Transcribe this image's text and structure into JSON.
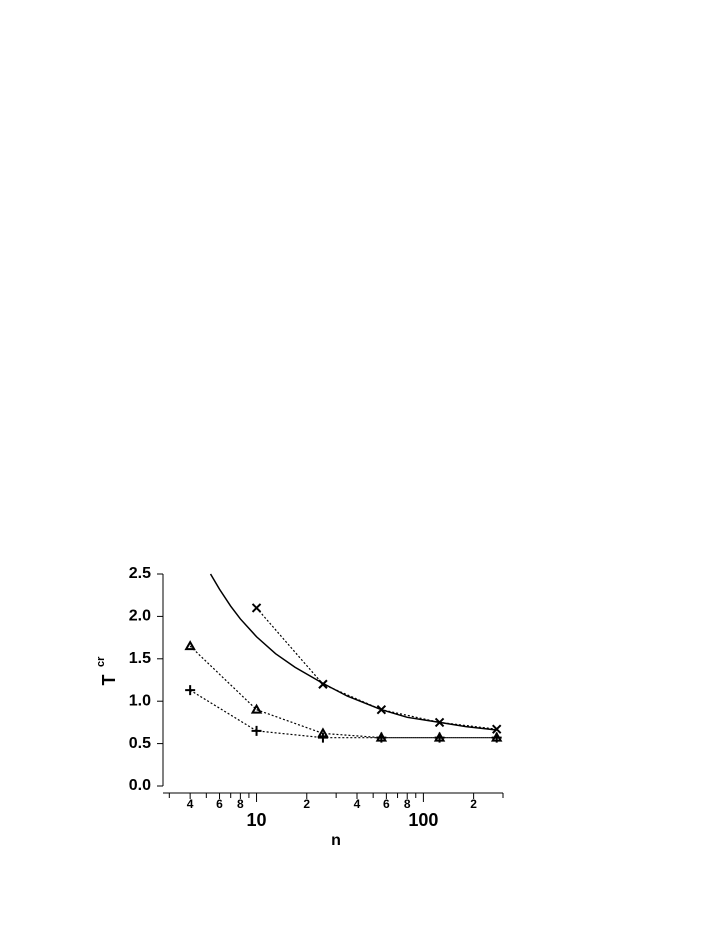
{
  "chart_data": {
    "type": "line",
    "xlabel": "n",
    "ylabel": "T",
    "ylabel_sup": "cr",
    "xscale": "log",
    "xlim": [
      2.75,
      300
    ],
    "ylim": [
      0,
      2.5
    ],
    "xticks": [
      {
        "value": 4,
        "label": "4"
      },
      {
        "value": 6,
        "label": "6"
      },
      {
        "value": 8,
        "label": "8"
      },
      10,
      {
        "value": 20,
        "label": "2"
      },
      {
        "value": 40,
        "label": "4"
      },
      {
        "value": 60,
        "label": "6"
      },
      {
        "value": 80,
        "label": "8"
      },
      100,
      {
        "value": 200,
        "label": "2"
      }
    ],
    "xminorticks": [
      3,
      5,
      7,
      9,
      30,
      50,
      70,
      90,
      300
    ],
    "yticks": [
      {
        "value": 0,
        "label": "0.0"
      },
      {
        "value": 0.5,
        "label": "0.5"
      },
      {
        "value": 1,
        "label": "1.0"
      },
      {
        "value": 1.5,
        "label": "1.5"
      },
      {
        "value": 2,
        "label": "2.0"
      },
      {
        "value": 2.5,
        "label": "2.5"
      }
    ],
    "series": [
      {
        "color": "#000000",
        "marker": "none",
        "line": "solid",
        "x": [
          5.3,
          6,
          7,
          8,
          10,
          13,
          17,
          25,
          35,
          56,
          80,
          125,
          180,
          275
        ],
        "values": [
          2.5,
          2.32,
          2.12,
          1.97,
          1.76,
          1.56,
          1.4,
          1.21,
          1.06,
          0.9,
          0.81,
          0.75,
          0.7,
          0.66
        ]
      },
      {
        "color": "#000000",
        "marker": "x",
        "line": "dotted",
        "x": [
          10,
          25,
          56,
          125,
          275
        ],
        "values": [
          2.1,
          1.2,
          0.9,
          0.75,
          0.67
        ]
      },
      {
        "color": "#000000",
        "marker": "triangle",
        "line": "dotted",
        "x": [
          4,
          10,
          25,
          56,
          125,
          275
        ],
        "values": [
          1.65,
          0.9,
          0.62,
          0.57,
          0.57,
          0.57
        ]
      },
      {
        "color": "#000000",
        "marker": "plus",
        "line": "dotted",
        "x": [
          4,
          10,
          25,
          56,
          125,
          275
        ],
        "values": [
          1.13,
          0.65,
          0.57,
          0.57,
          0.57,
          0.57
        ]
      }
    ]
  }
}
